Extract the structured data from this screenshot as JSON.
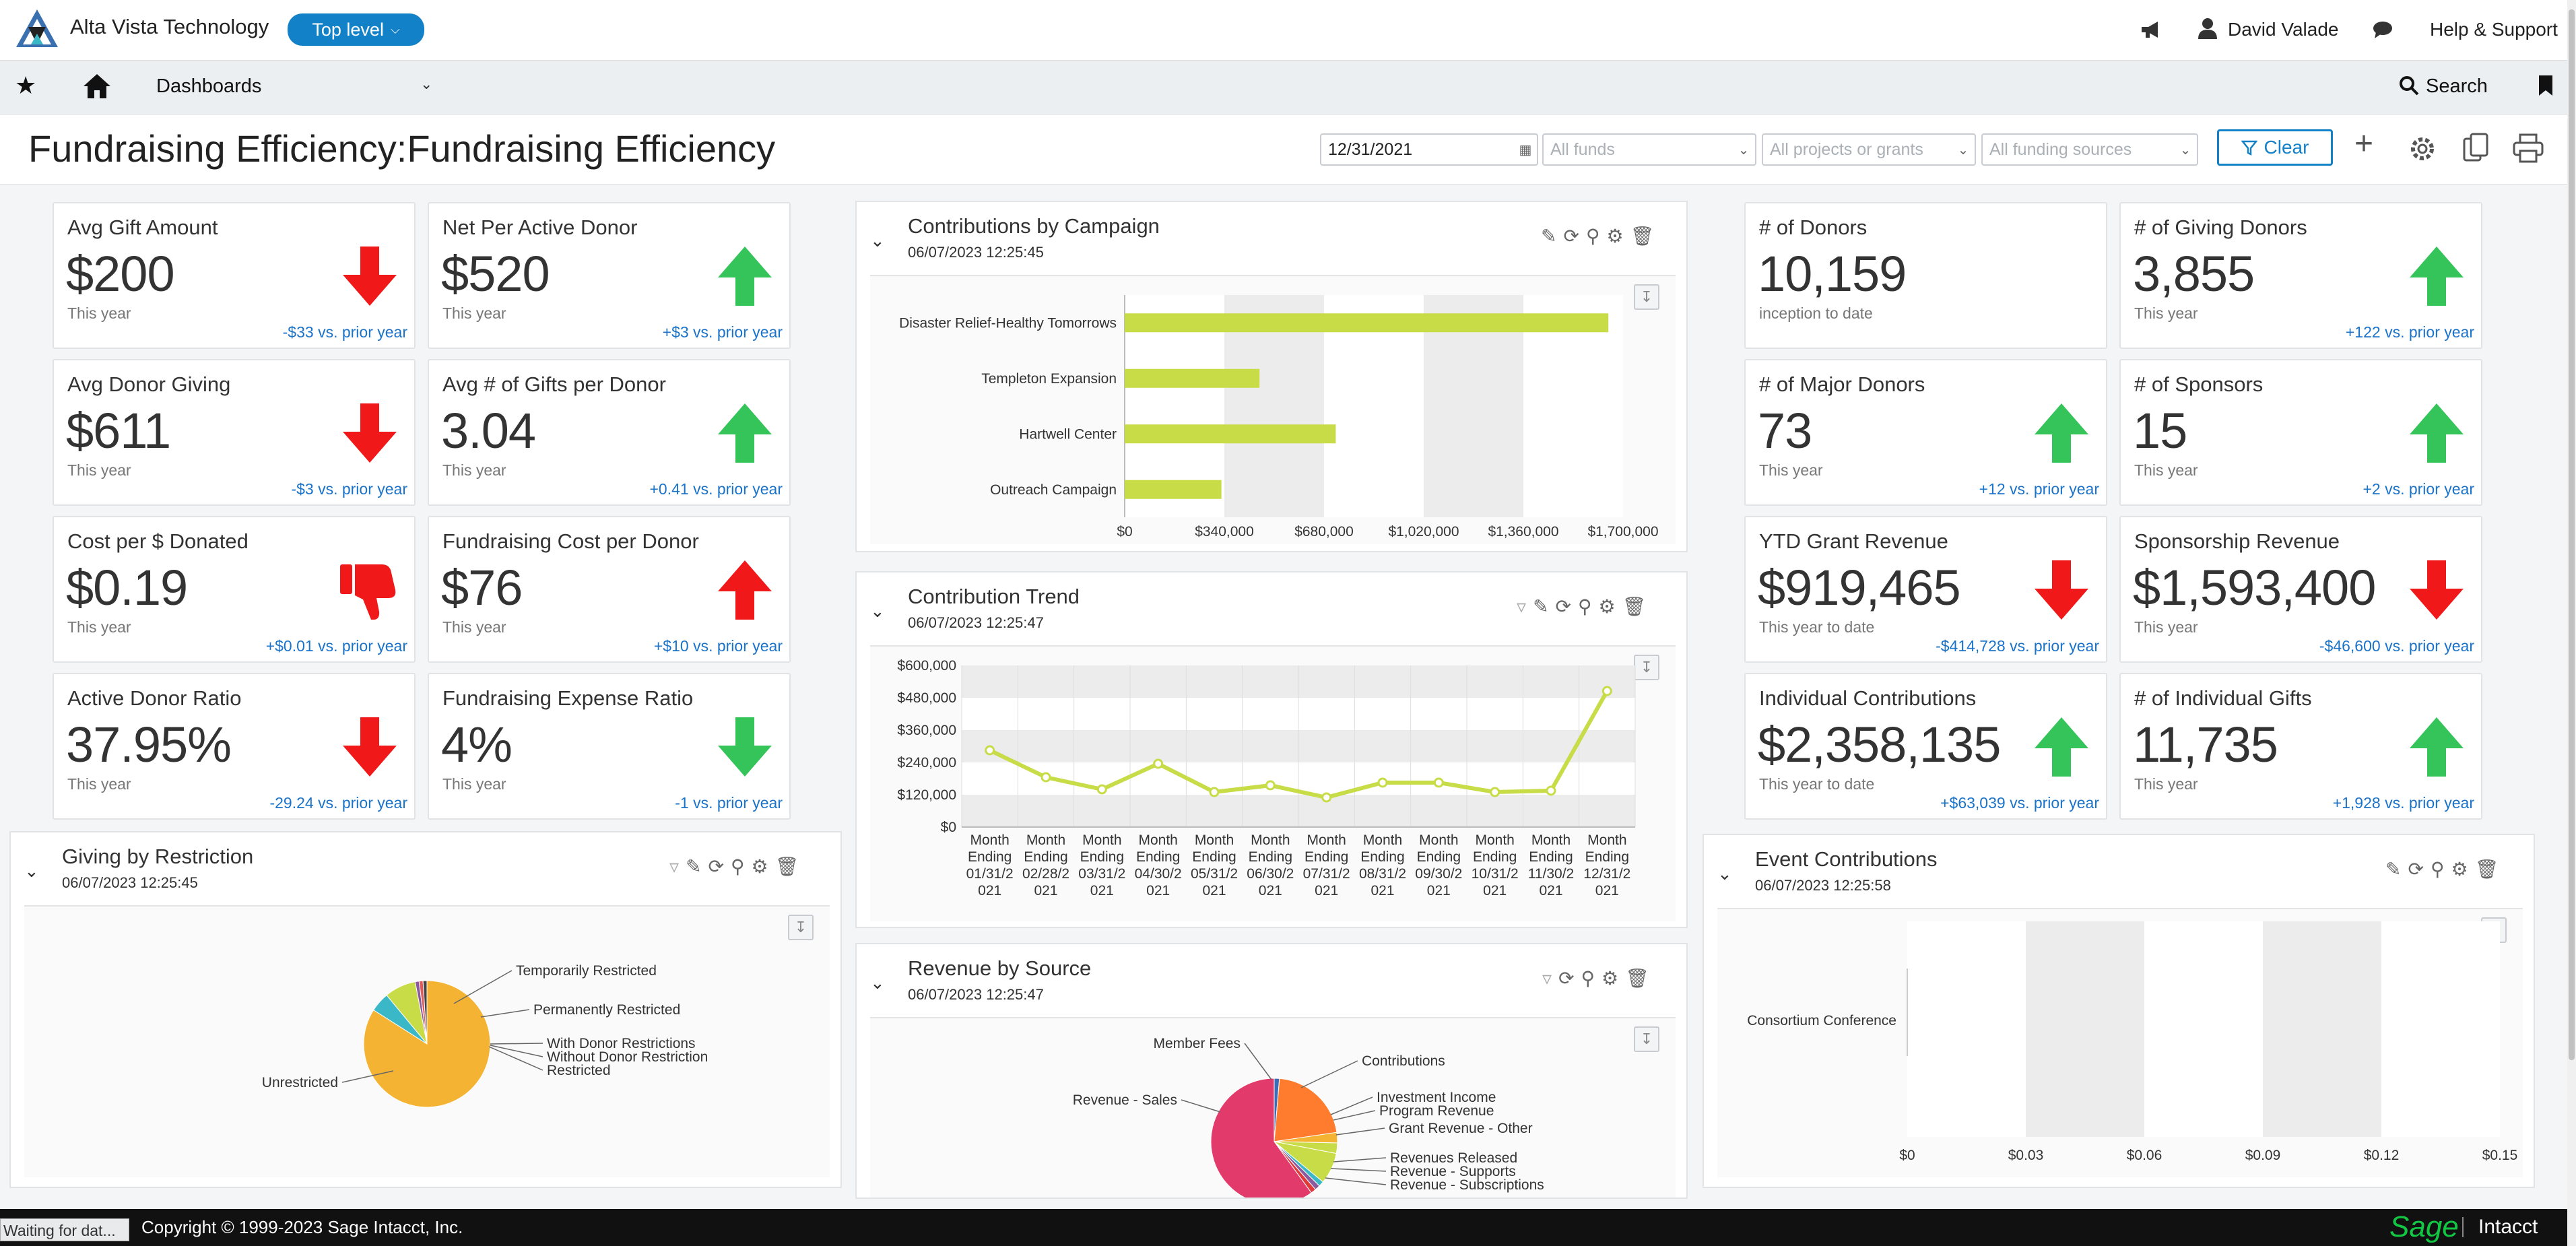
{
  "header": {
    "company": "Alta Vista Technology",
    "level_label": "Top level",
    "user": "David Valade",
    "help": "Help & Support"
  },
  "nav": {
    "dashboards": "Dashboards",
    "search": "Search"
  },
  "page": {
    "title": "Fundraising Efficiency:Fundraising Efficiency",
    "date_value": "12/31/2021",
    "funds_placeholder": "All funds",
    "projects_placeholder": "All projects or grants",
    "sources_placeholder": "All funding sources",
    "clear_label": "Clear"
  },
  "kpis_left": [
    {
      "title": "Avg Gift Amount",
      "value": "$200",
      "sub": "This year",
      "change": "-$33 vs. prior year",
      "trend": "down-red"
    },
    {
      "title": "Net Per Active Donor",
      "value": "$520",
      "sub": "This year",
      "change": "+$3 vs. prior year",
      "trend": "up-green"
    },
    {
      "title": "Avg Donor Giving",
      "value": "$611",
      "sub": "This year",
      "change": "-$3 vs. prior year",
      "trend": "down-red"
    },
    {
      "title": "Avg # of Gifts per Donor",
      "value": "3.04",
      "sub": "This year",
      "change": "+0.41 vs. prior year",
      "trend": "up-green"
    },
    {
      "title": "Cost per $ Donated",
      "value": "$0.19",
      "sub": "This year",
      "change": "+$0.01 vs. prior year",
      "trend": "thumbs-down-red"
    },
    {
      "title": "Fundraising Cost per Donor",
      "value": "$76",
      "sub": "This year",
      "change": "+$10 vs. prior year",
      "trend": "up-red"
    },
    {
      "title": "Active Donor Ratio",
      "value": "37.95%",
      "sub": "This year",
      "change": "-29.24 vs. prior year",
      "trend": "down-red"
    },
    {
      "title": "Fundraising Expense Ratio",
      "value": "4%",
      "sub": "This year",
      "change": "-1 vs. prior year",
      "trend": "down-green"
    }
  ],
  "kpis_right": [
    {
      "title": "# of Donors",
      "value": "10,159",
      "sub": "inception to date",
      "change": "",
      "trend": "none"
    },
    {
      "title": "# of Giving Donors",
      "value": "3,855",
      "sub": "This year",
      "change": "+122 vs. prior year",
      "trend": "up-green"
    },
    {
      "title": "# of Major Donors",
      "value": "73",
      "sub": "This year",
      "change": "+12 vs. prior year",
      "trend": "up-green"
    },
    {
      "title": "# of Sponsors",
      "value": "15",
      "sub": "This year",
      "change": "+2 vs. prior year",
      "trend": "up-green"
    },
    {
      "title": "YTD Grant Revenue",
      "value": "$919,465",
      "sub": "This year to date",
      "change": "-$414,728 vs. prior year",
      "trend": "down-red"
    },
    {
      "title": "Sponsorship Revenue",
      "value": "$1,593,400",
      "sub": "This year",
      "change": "-$46,600 vs. prior year",
      "trend": "down-red"
    },
    {
      "title": "Individual Contributions",
      "value": "$2,358,135",
      "sub": "This year to date",
      "change": "+$63,039 vs. prior year",
      "trend": "up-green"
    },
    {
      "title": "# of Individual Gifts",
      "value": "11,735",
      "sub": "This year",
      "change": "+1,928 vs. prior year",
      "trend": "up-green"
    }
  ],
  "panels": {
    "campaign": {
      "title": "Contributions by Campaign",
      "date": "06/07/2023 12:25:45"
    },
    "trend": {
      "title": "Contribution Trend",
      "date": "06/07/2023 12:25:47"
    },
    "source": {
      "title": "Revenue by Source",
      "date": "06/07/2023 12:25:47"
    },
    "restriction": {
      "title": "Giving by Restriction",
      "date": "06/07/2023 12:25:45"
    },
    "event": {
      "title": "Event Contributions",
      "date": "06/07/2023 12:25:58"
    }
  },
  "chart_data": [
    {
      "type": "bar",
      "orientation": "horizontal",
      "categories": [
        "Disaster Relief-Healthy Tomorrows",
        "Templeton Expansion",
        "Hartwell Center",
        "Outreach Campaign"
      ],
      "values": [
        1650000,
        460000,
        720000,
        330000
      ],
      "xlim": [
        0,
        1700000
      ],
      "ticks": [
        "$0",
        "$340,000",
        "$680,000",
        "$1,020,000",
        "$1,360,000",
        "$1,700,000"
      ],
      "color": "#c8dc48"
    },
    {
      "type": "line",
      "x": [
        "Month Ending 01/31/2021",
        "Month Ending 02/28/2021",
        "Month Ending 03/31/2021",
        "Month Ending 04/30/2021",
        "Month Ending 05/31/2021",
        "Month Ending 06/30/2021",
        "Month Ending 07/31/2021",
        "Month Ending 08/31/2021",
        "Month Ending 09/30/2021",
        "Month Ending 10/31/2021",
        "Month Ending 11/30/2021",
        "Month Ending 12/31/2021"
      ],
      "x_label_lines": [
        [
          "Month",
          "Ending",
          "01/31/2",
          "021"
        ],
        [
          "Month",
          "Ending",
          "02/28/2",
          "021"
        ],
        [
          "Month",
          "Ending",
          "03/31/2",
          "021"
        ],
        [
          "Month",
          "Ending",
          "04/30/2",
          "021"
        ],
        [
          "Month",
          "Ending",
          "05/31/2",
          "021"
        ],
        [
          "Month",
          "Ending",
          "06/30/2",
          "021"
        ],
        [
          "Month",
          "Ending",
          "07/31/2",
          "021"
        ],
        [
          "Month",
          "Ending",
          "08/31/2",
          "021"
        ],
        [
          "Month",
          "Ending",
          "09/30/2",
          "021"
        ],
        [
          "Month",
          "Ending",
          "10/31/2",
          "021"
        ],
        [
          "Month",
          "Ending",
          "11/30/2",
          "021"
        ],
        [
          "Month",
          "Ending",
          "12/31/2",
          "021"
        ]
      ],
      "values": [
        285000,
        185000,
        140000,
        235000,
        130000,
        155000,
        110000,
        165000,
        165000,
        130000,
        135000,
        505000
      ],
      "ylim": [
        0,
        600000
      ],
      "yticks": [
        "$0",
        "$120,000",
        "$240,000",
        "$360,000",
        "$480,000",
        "$600,000"
      ],
      "color": "#c8dc48"
    },
    {
      "type": "pie",
      "labels": [
        "Unrestricted",
        "Temporarily Restricted",
        "Permanently Restricted",
        "With Donor Restrictions",
        "Without Donor Restriction",
        "Restricted"
      ],
      "values": [
        84,
        5,
        8,
        1,
        1,
        1
      ],
      "colors": [
        "#f4b333",
        "#3bb8c8",
        "#c8dc48",
        "#8a5a9c",
        "#e05a5a",
        "#444444"
      ]
    },
    {
      "type": "pie",
      "labels": [
        "Member Fees",
        "Contributions",
        "Investment Income",
        "Program Revenue",
        "Grant Revenue - Other",
        "Revenues Released",
        "Revenue - Supports",
        "Revenue - Subscriptions",
        "Revenue - Sales"
      ],
      "values": [
        1,
        16,
        2,
        2,
        6,
        1,
        1,
        1,
        45
      ],
      "colors": [
        "#3b6db8",
        "#ff7b2e",
        "#f4b333",
        "#c8dc48",
        "#c8dc48",
        "#3bb8c8",
        "#8a5a9c",
        "#e03a3a",
        "#e23a6a"
      ]
    },
    {
      "type": "bar",
      "orientation": "horizontal",
      "categories": [
        "Consortium Conference"
      ],
      "values": [
        0
      ],
      "xlim": [
        0,
        0.15
      ],
      "ticks": [
        "$0",
        "$0.03",
        "$0.06",
        "$0.09",
        "$0.12",
        "$0.15"
      ]
    }
  ],
  "footer": {
    "status": "Waiting for dat...",
    "copyright": "Copyright © 1999-2023 Sage Intacct, Inc.",
    "brand_sage": "Sage",
    "brand_intacct": "Intacct"
  }
}
